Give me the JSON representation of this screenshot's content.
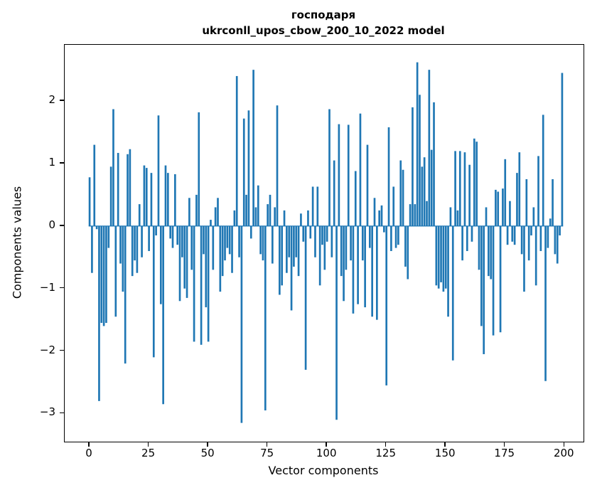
{
  "chart_data": {
    "type": "bar",
    "title": "господаря",
    "subtitle": "ukrconll_upos_cbow_200_10_2022 model",
    "xlabel": "Vector components",
    "ylabel": "Components values",
    "bar_color": "#1f77b4",
    "axis_color": "#000000",
    "xlim": [
      -10.5,
      208
    ],
    "ylim": [
      -3.45,
      2.9
    ],
    "x_ticks": [
      0,
      25,
      50,
      75,
      100,
      125,
      150,
      175,
      200
    ],
    "y_ticks": [
      -3,
      -2,
      -1,
      0,
      1,
      2
    ],
    "bar_width": 0.8,
    "x_start": 0,
    "values": [
      0.78,
      -0.75,
      1.3,
      -0.05,
      -2.8,
      -1.55,
      -1.6,
      -1.55,
      -0.35,
      0.95,
      1.87,
      -1.45,
      1.17,
      -0.6,
      -1.05,
      -2.2,
      1.15,
      1.23,
      -0.8,
      -0.55,
      -0.75,
      0.35,
      -0.5,
      0.97,
      0.93,
      -0.4,
      0.85,
      -2.1,
      -0.15,
      1.77,
      -1.25,
      -2.85,
      0.97,
      0.85,
      -0.2,
      -0.35,
      0.83,
      -0.3,
      -1.2,
      -0.5,
      -1.0,
      -1.15,
      0.45,
      -0.7,
      -1.85,
      0.5,
      1.82,
      -1.9,
      -0.45,
      -1.3,
      -1.85,
      0.1,
      -0.7,
      0.3,
      0.45,
      -1.05,
      -0.8,
      -0.55,
      -0.35,
      -0.45,
      -0.75,
      0.25,
      2.4,
      -0.5,
      -3.15,
      1.72,
      0.5,
      1.85,
      -0.2,
      2.5,
      0.3,
      0.65,
      -0.45,
      -0.55,
      -2.95,
      0.35,
      0.5,
      -0.6,
      0.3,
      1.93,
      -1.1,
      -0.95,
      0.25,
      -0.75,
      -0.5,
      -1.35,
      -0.65,
      -0.5,
      -0.8,
      0.2,
      -0.25,
      -2.3,
      0.25,
      -0.2,
      0.63,
      -0.5,
      0.63,
      -0.95,
      -0.3,
      -0.7,
      -0.25,
      1.87,
      -0.5,
      1.05,
      -3.1,
      1.63,
      -0.8,
      -1.2,
      -0.7,
      1.62,
      -0.55,
      -1.4,
      0.88,
      -1.25,
      1.8,
      -0.55,
      -1.3,
      1.3,
      -0.35,
      -1.45,
      0.45,
      -1.5,
      0.25,
      0.33,
      -0.1,
      -2.55,
      1.58,
      -0.4,
      0.63,
      -0.35,
      -0.3,
      1.05,
      0.9,
      -0.65,
      -0.85,
      0.35,
      1.9,
      0.35,
      2.62,
      2.1,
      0.95,
      1.1,
      0.4,
      2.5,
      1.22,
      1.98,
      -0.95,
      -1.0,
      -0.9,
      -1.05,
      -1.0,
      -1.45,
      0.3,
      -2.15,
      1.2,
      0.25,
      1.2,
      -0.55,
      1.18,
      -0.4,
      0.98,
      -0.25,
      1.4,
      1.35,
      -0.7,
      -1.6,
      -2.05,
      0.3,
      -0.8,
      -0.85,
      -1.75,
      0.58,
      0.55,
      -1.7,
      0.6,
      1.07,
      -0.3,
      0.4,
      -0.25,
      -0.3,
      0.85,
      1.18,
      -0.45,
      -1.05,
      0.75,
      -0.55,
      -0.15,
      0.3,
      -0.95,
      1.12,
      -0.4,
      1.78,
      -2.48,
      -0.35,
      0.12,
      0.75,
      -0.45,
      -0.6,
      -0.15,
      2.45
    ]
  }
}
